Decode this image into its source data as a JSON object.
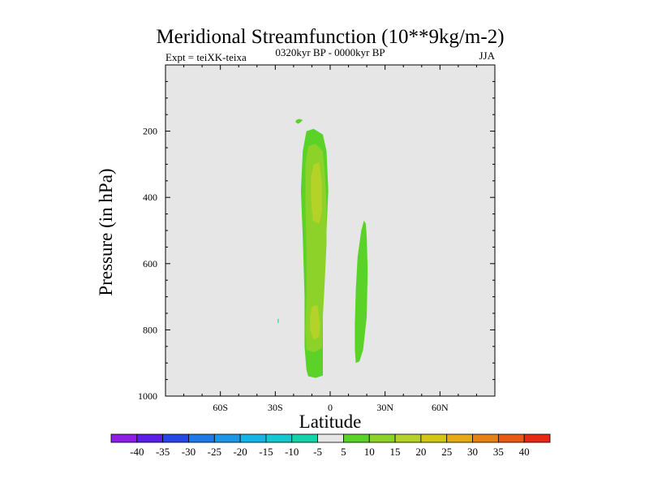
{
  "chart_data": {
    "type": "contour",
    "title": "Meridional Streamfunction (10**9kg/m-2)",
    "subtitle_left": "Expt = teiXK-teixa",
    "subtitle_center": "0320kyr BP - 0000kyr BP",
    "subtitle_right": "JJA",
    "xlabel": "Latitude",
    "ylabel": "Pressure (in hPa)",
    "xlim": [
      -90,
      90
    ],
    "ylim": [
      1000,
      0
    ],
    "x_ticks": [
      {
        "value": -60,
        "label": "60S"
      },
      {
        "value": -30,
        "label": "30S"
      },
      {
        "value": 0,
        "label": "0"
      },
      {
        "value": 30,
        "label": "30N"
      },
      {
        "value": 60,
        "label": "60N"
      }
    ],
    "y_ticks": [
      {
        "value": 200,
        "label": "200"
      },
      {
        "value": 400,
        "label": "400"
      },
      {
        "value": 600,
        "label": "600"
      },
      {
        "value": 800,
        "label": "800"
      },
      {
        "value": 1000,
        "label": "1000"
      }
    ],
    "background_color": "#e6e6e6",
    "levels": [
      -40,
      -35,
      -30,
      -25,
      -20,
      -15,
      -10,
      -5,
      5,
      10,
      15,
      20,
      25,
      30,
      35,
      40
    ],
    "colorbar_colors": [
      "#8c1ee6",
      "#5a1ee6",
      "#2846e6",
      "#1e78e6",
      "#1e96e6",
      "#14b4e6",
      "#14c8d2",
      "#14d2aa",
      "#e6e6e6",
      "#5ad228",
      "#8cd228",
      "#b4d228",
      "#d2c814",
      "#e6aa14",
      "#e68214",
      "#e65a14",
      "#e62814"
    ],
    "regions": [
      {
        "band": "5 to 10",
        "color": "#5ad228",
        "points": [
          [
            -12,
            940
          ],
          [
            -8,
            945
          ],
          [
            -4,
            938
          ],
          [
            -4,
            600
          ],
          [
            -2,
            500
          ],
          [
            -1,
            380
          ],
          [
            -2,
            260
          ],
          [
            -4,
            210
          ],
          [
            -9,
            193
          ],
          [
            -13,
            200
          ],
          [
            -15,
            260
          ],
          [
            -16,
            380
          ],
          [
            -15,
            520
          ],
          [
            -14,
            700
          ],
          [
            -14,
            850
          ],
          [
            -13,
            920
          ]
        ]
      },
      {
        "band": "5 to 10",
        "color": "#5ad228",
        "points": [
          [
            -17.5,
            178
          ],
          [
            -16,
            172
          ],
          [
            -15,
            166
          ],
          [
            -17,
            163
          ],
          [
            -18.5,
            166
          ],
          [
            -19,
            172
          ]
        ]
      },
      {
        "band": "5 to 10",
        "color": "#5ad228",
        "points": [
          [
            14,
            900
          ],
          [
            16,
            895
          ],
          [
            18,
            860
          ],
          [
            20,
            760
          ],
          [
            20.5,
            620
          ],
          [
            20,
            520
          ],
          [
            19.5,
            480
          ],
          [
            18.5,
            470
          ],
          [
            17,
            500
          ],
          [
            15,
            580
          ],
          [
            14,
            680
          ],
          [
            13.5,
            780
          ],
          [
            13.5,
            860
          ]
        ]
      },
      {
        "band": "10 to 15",
        "color": "#8cd228",
        "points": [
          [
            -13,
            860
          ],
          [
            -9,
            868
          ],
          [
            -4.5,
            855
          ],
          [
            -4,
            760
          ],
          [
            -3,
            660
          ],
          [
            -2,
            540
          ],
          [
            -2,
            420
          ],
          [
            -3,
            320
          ],
          [
            -4,
            260
          ],
          [
            -8,
            238
          ],
          [
            -12,
            245
          ],
          [
            -13.5,
            300
          ],
          [
            -13.5,
            420
          ],
          [
            -13,
            560
          ],
          [
            -13,
            700
          ],
          [
            -13.5,
            800
          ]
        ]
      },
      {
        "band": "15 to 20",
        "color": "#b4d228",
        "points": [
          [
            -9,
            300
          ],
          [
            -6,
            295
          ],
          [
            -4.5,
            360
          ],
          [
            -4.5,
            440
          ],
          [
            -6,
            480
          ],
          [
            -9.5,
            470
          ],
          [
            -10.5,
            400
          ],
          [
            -10.5,
            340
          ]
        ]
      },
      {
        "band": "15 to 20",
        "color": "#b4d228",
        "points": [
          [
            -10,
            730
          ],
          [
            -7,
            725
          ],
          [
            -5.5,
            780
          ],
          [
            -6,
            820
          ],
          [
            -9,
            830
          ],
          [
            -11,
            800
          ],
          [
            -11,
            760
          ]
        ]
      },
      {
        "band": "-5 to 5",
        "color": "#14d2aa",
        "points": [
          [
            -28.7,
            768
          ],
          [
            -28.2,
            766
          ],
          [
            -28.1,
            778
          ],
          [
            -28.6,
            780
          ]
        ]
      }
    ]
  }
}
